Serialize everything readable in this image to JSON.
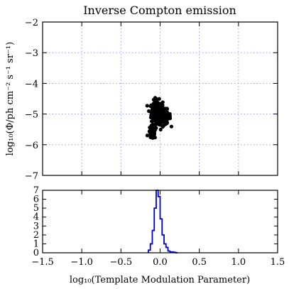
{
  "chart_data": [
    {
      "type": "scatter",
      "title": "Inverse Compton emission",
      "ylabel": "log₁₀(Φ/ph cm⁻² s⁻¹ sr⁻¹)",
      "xlabel": "",
      "xlim": [
        -1.5,
        1.5
      ],
      "ylim": [
        -7,
        -2
      ],
      "grid": true,
      "xticks": [
        -1.5,
        -1.0,
        -0.5,
        0.0,
        0.5,
        1.0,
        1.5
      ],
      "yticks": [
        "−2",
        "−3",
        "−4",
        "−5",
        "−6",
        "−7"
      ],
      "ytick_values": [
        -2,
        -3,
        -4,
        -5,
        -6,
        -7
      ],
      "point_color": "#000000",
      "clusters": [
        {
          "cx": -0.04,
          "cy": -4.95,
          "sx": 0.06,
          "sy": 0.32,
          "n": 260
        },
        {
          "cx": 0.05,
          "cy": -5.1,
          "sx": 0.07,
          "sy": 0.2,
          "n": 120
        },
        {
          "cx": -0.1,
          "cy": -5.6,
          "sx": 0.04,
          "sy": 0.18,
          "n": 60
        }
      ]
    },
    {
      "type": "histogram",
      "title": "",
      "xlabel": "log₁₀(Template Modulation Parameter)",
      "ylabel": "",
      "xlim": [
        -1.5,
        1.5
      ],
      "ylim": [
        0,
        7
      ],
      "xticks": [
        "−1.5",
        "−1.0",
        "−0.5",
        "0.0",
        "0.5",
        "1.0",
        "1.5"
      ],
      "xtick_values": [
        -1.5,
        -1.0,
        -0.5,
        0.0,
        0.5,
        1.0,
        1.5
      ],
      "yticks": [
        "0",
        "1",
        "2",
        "3",
        "4",
        "5",
        "6",
        "7"
      ],
      "ytick_values": [
        0,
        1,
        2,
        3,
        4,
        5,
        6,
        7
      ],
      "line_color": "#0000cc",
      "bin_edges": [
        -0.15,
        -0.125,
        -0.1,
        -0.075,
        -0.05,
        -0.025,
        0.0,
        0.025,
        0.05,
        0.075,
        0.1,
        0.125,
        0.15,
        0.175,
        0.2,
        0.225
      ],
      "counts": [
        0.3,
        1,
        2.5,
        5,
        7,
        6.3,
        3.8,
        2,
        1,
        0.6,
        0.2,
        0.1,
        0.1,
        0.05,
        0
      ]
    }
  ]
}
